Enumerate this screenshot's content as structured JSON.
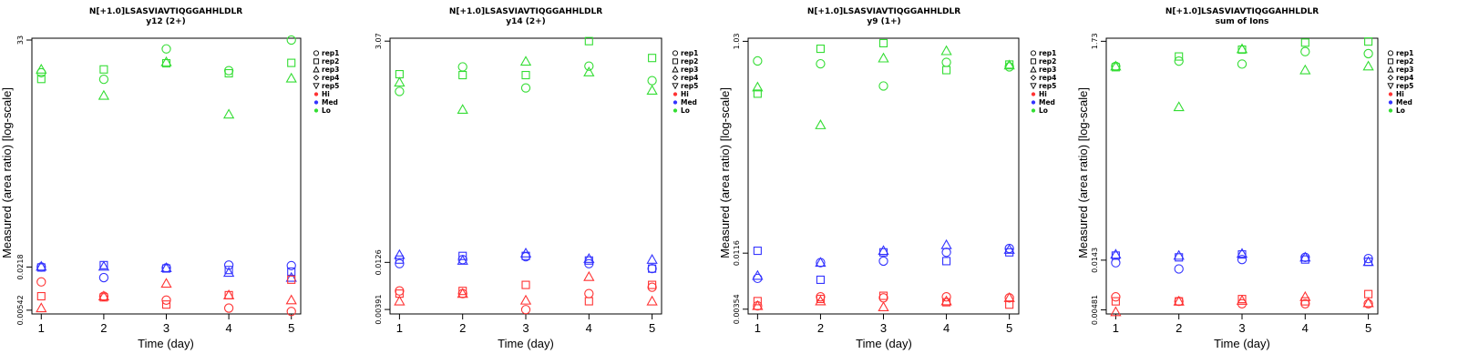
{
  "colors": {
    "Hi": "#ff3333",
    "Med": "#3333ff",
    "Lo": "#33dd33",
    "axis": "#000000"
  },
  "legend": [
    {
      "label": "rep1",
      "marker": "circle"
    },
    {
      "label": "rep2",
      "marker": "square"
    },
    {
      "label": "rep3",
      "marker": "triangle-up"
    },
    {
      "label": "rep4",
      "marker": "diamond"
    },
    {
      "label": "rep5",
      "marker": "triangle-down"
    },
    {
      "label": "Hi",
      "marker": "dot",
      "color": "#ff3333"
    },
    {
      "label": "Med",
      "marker": "dot",
      "color": "#3333ff"
    },
    {
      "label": "Lo",
      "marker": "dot",
      "color": "#33dd33"
    }
  ],
  "chart_data": [
    {
      "type": "scatter",
      "title": "N[+1.0]LSASVIAVTIQGGAHHLDLR",
      "subtitle": "y12 (2+)",
      "xlabel": "Time (day)",
      "ylabel": "Measured (area ratio) [log-scale]",
      "y_scale": "log",
      "xlim": [
        0.85,
        5.15
      ],
      "ylim": [
        0.0048,
        35
      ],
      "x_ticks": [
        1,
        2,
        3,
        4,
        5
      ],
      "y_ticks": [
        0.00542,
        0.0218,
        33
      ],
      "y_tick_labels": [
        "0.00542",
        "0.0218",
        "33"
      ],
      "series": [
        {
          "group": "Lo",
          "rep": "rep1",
          "x": [
            1,
            2,
            3,
            4,
            5
          ],
          "y": [
            11.5,
            9.3,
            24.8,
            12.3,
            33
          ]
        },
        {
          "group": "Lo",
          "rep": "rep2",
          "x": [
            1,
            2,
            3,
            4,
            5
          ],
          "y": [
            9.4,
            12.8,
            15.6,
            11.3,
            15.8
          ]
        },
        {
          "group": "Lo",
          "rep": "rep3",
          "x": [
            1,
            2,
            3,
            4,
            5
          ],
          "y": [
            12.8,
            5.5,
            16.2,
            3.0,
            9.6
          ]
        },
        {
          "group": "Med",
          "rep": "rep1",
          "x": [
            1,
            2,
            3,
            4,
            5
          ],
          "y": [
            0.0218,
            0.0155,
            0.0212,
            0.0232,
            0.0228
          ]
        },
        {
          "group": "Med",
          "rep": "rep2",
          "x": [
            1,
            2,
            3,
            4,
            5
          ],
          "y": [
            0.0215,
            0.0232,
            0.0208,
            0.0198,
            0.0188
          ]
        },
        {
          "group": "Med",
          "rep": "rep3",
          "x": [
            1,
            2,
            3,
            4,
            5
          ],
          "y": [
            0.0222,
            0.0222,
            0.0212,
            0.0182,
            0.0155
          ]
        },
        {
          "group": "Hi",
          "rep": "rep1",
          "x": [
            1,
            2,
            3,
            4,
            5
          ],
          "y": [
            0.0135,
            0.0085,
            0.0075,
            0.0058,
            0.0052
          ]
        },
        {
          "group": "Hi",
          "rep": "rep2",
          "x": [
            1,
            2,
            3,
            4,
            5
          ],
          "y": [
            0.0085,
            0.0082,
            0.0065,
            0.0088,
            0.0145
          ]
        },
        {
          "group": "Hi",
          "rep": "rep3",
          "x": [
            1,
            2,
            3,
            4,
            5
          ],
          "y": [
            0.0058,
            0.0085,
            0.0128,
            0.0088,
            0.0075
          ]
        }
      ]
    },
    {
      "type": "scatter",
      "title": "N[+1.0]LSASVIAVTIQGGAHHLDLR",
      "subtitle": "y14 (2+)",
      "xlabel": "Time (day)",
      "ylabel": "",
      "y_scale": "log",
      "xlim": [
        0.85,
        5.15
      ],
      "ylim": [
        0.0035,
        3.3
      ],
      "x_ticks": [
        1,
        2,
        3,
        4,
        5
      ],
      "y_ticks": [
        0.00391,
        0.0126,
        3.07
      ],
      "y_tick_labels": [
        "0.00391",
        "0.0126",
        "3.07"
      ],
      "series": [
        {
          "group": "Lo",
          "rep": "rep1",
          "x": [
            1,
            2,
            3,
            4,
            5
          ],
          "y": [
            0.88,
            1.62,
            0.96,
            1.65,
            1.15
          ]
        },
        {
          "group": "Lo",
          "rep": "rep2",
          "x": [
            1,
            2,
            3,
            4,
            5
          ],
          "y": [
            1.35,
            1.32,
            1.32,
            3.07,
            2.02
          ]
        },
        {
          "group": "Lo",
          "rep": "rep3",
          "x": [
            1,
            2,
            3,
            4,
            5
          ],
          "y": [
            1.1,
            0.56,
            1.85,
            1.42,
            0.9
          ]
        },
        {
          "group": "Med",
          "rep": "rep1",
          "x": [
            1,
            2,
            3,
            4,
            5
          ],
          "y": [
            0.0122,
            0.0135,
            0.0145,
            0.0122,
            0.0108
          ]
        },
        {
          "group": "Med",
          "rep": "rep2",
          "x": [
            1,
            2,
            3,
            4,
            5
          ],
          "y": [
            0.0135,
            0.0148,
            0.0148,
            0.0132,
            0.0108
          ]
        },
        {
          "group": "Med",
          "rep": "rep3",
          "x": [
            1,
            2,
            3,
            4,
            5
          ],
          "y": [
            0.0152,
            0.0132,
            0.0158,
            0.0138,
            0.0135
          ]
        },
        {
          "group": "Hi",
          "rep": "rep1",
          "x": [
            1,
            2,
            3,
            4,
            5
          ],
          "y": [
            0.0062,
            0.0058,
            0.0039,
            0.0058,
            0.0068
          ]
        },
        {
          "group": "Hi",
          "rep": "rep2",
          "x": [
            1,
            2,
            3,
            4,
            5
          ],
          "y": [
            0.0058,
            0.0062,
            0.0072,
            0.0048,
            0.0072
          ]
        },
        {
          "group": "Hi",
          "rep": "rep3",
          "x": [
            1,
            2,
            3,
            4,
            5
          ],
          "y": [
            0.0048,
            0.0058,
            0.0049,
            0.0088,
            0.0048
          ]
        }
      ]
    },
    {
      "type": "scatter",
      "title": "N[+1.0]LSASVIAVTIQGGAHHLDLR",
      "subtitle": "y9 (1+)",
      "xlabel": "Time (day)",
      "ylabel": "Measured (area ratio) [log-scale]",
      "y_scale": "log",
      "xlim": [
        0.85,
        5.15
      ],
      "ylim": [
        0.0032,
        1.1
      ],
      "x_ticks": [
        1,
        2,
        3,
        4,
        5
      ],
      "y_ticks": [
        0.00354,
        0.0116,
        1.03
      ],
      "y_tick_labels": [
        "0.00354",
        "0.0116",
        "1.03"
      ],
      "series": [
        {
          "group": "Lo",
          "rep": "rep1",
          "x": [
            1,
            2,
            3,
            4,
            5
          ],
          "y": [
            0.68,
            0.64,
            0.4,
            0.66,
            0.6
          ]
        },
        {
          "group": "Lo",
          "rep": "rep2",
          "x": [
            1,
            2,
            3,
            4,
            5
          ],
          "y": [
            0.34,
            0.88,
            0.99,
            0.56,
            0.63
          ]
        },
        {
          "group": "Lo",
          "rep": "rep3",
          "x": [
            1,
            2,
            3,
            4,
            5
          ],
          "y": [
            0.39,
            0.175,
            0.72,
            0.84,
            0.62
          ]
        },
        {
          "group": "Med",
          "rep": "rep1",
          "x": [
            1,
            2,
            3,
            4,
            5
          ],
          "y": [
            0.0068,
            0.0095,
            0.0098,
            0.0118,
            0.0128
          ]
        },
        {
          "group": "Med",
          "rep": "rep2",
          "x": [
            1,
            2,
            3,
            4,
            5
          ],
          "y": [
            0.0122,
            0.0066,
            0.0118,
            0.0098,
            0.0118
          ]
        },
        {
          "group": "Med",
          "rep": "rep3",
          "x": [
            1,
            2,
            3,
            4,
            5
          ],
          "y": [
            0.0072,
            0.0095,
            0.0122,
            0.0138,
            0.0125
          ]
        },
        {
          "group": "Hi",
          "rep": "rep1",
          "x": [
            1,
            2,
            3,
            4,
            5
          ],
          "y": [
            0.0038,
            0.0046,
            0.0045,
            0.0046,
            0.0045
          ]
        },
        {
          "group": "Hi",
          "rep": "rep2",
          "x": [
            1,
            2,
            3,
            4,
            5
          ],
          "y": [
            0.0042,
            0.0044,
            0.0047,
            0.0041,
            0.0039
          ]
        },
        {
          "group": "Hi",
          "rep": "rep3",
          "x": [
            1,
            2,
            3,
            4,
            5
          ],
          "y": [
            0.0038,
            0.0042,
            0.0037,
            0.0042,
            0.0045
          ]
        }
      ]
    },
    {
      "type": "scatter",
      "title": "N[+1.0]LSASVIAVTIQGGAHHLDLR",
      "subtitle": "sum of Ions",
      "xlabel": "Time (day)",
      "ylabel": "Measured (area ratio) [log-scale]",
      "y_scale": "log",
      "xlim": [
        0.85,
        5.15
      ],
      "ylim": [
        0.0044,
        1.85
      ],
      "x_ticks": [
        1,
        2,
        3,
        4,
        5
      ],
      "y_ticks": [
        0.00481,
        0.0143,
        1.73
      ],
      "y_tick_labels": [
        "0.00481",
        "0.0143",
        "1.73"
      ],
      "series": [
        {
          "group": "Lo",
          "rep": "rep1",
          "x": [
            1,
            2,
            3,
            4,
            5
          ],
          "y": [
            1.0,
            1.12,
            1.05,
            1.38,
            1.32
          ]
        },
        {
          "group": "Lo",
          "rep": "rep2",
          "x": [
            1,
            2,
            3,
            4,
            5
          ],
          "y": [
            0.98,
            1.24,
            1.44,
            1.68,
            1.72
          ]
        },
        {
          "group": "Lo",
          "rep": "rep3",
          "x": [
            1,
            2,
            3,
            4,
            5
          ],
          "y": [
            1.0,
            0.41,
            1.46,
            0.92,
            1.0
          ]
        },
        {
          "group": "Med",
          "rep": "rep1",
          "x": [
            1,
            2,
            3,
            4,
            5
          ],
          "y": [
            0.0135,
            0.0118,
            0.0145,
            0.0152,
            0.0148
          ]
        },
        {
          "group": "Med",
          "rep": "rep2",
          "x": [
            1,
            2,
            3,
            4,
            5
          ],
          "y": [
            0.0158,
            0.0152,
            0.0162,
            0.0145,
            0.0138
          ]
        },
        {
          "group": "Med",
          "rep": "rep3",
          "x": [
            1,
            2,
            3,
            4,
            5
          ],
          "y": [
            0.0162,
            0.0158,
            0.0165,
            0.0152,
            0.0138
          ]
        },
        {
          "group": "Hi",
          "rep": "rep1",
          "x": [
            1,
            2,
            3,
            4,
            5
          ],
          "y": [
            0.0064,
            0.0058,
            0.0055,
            0.0055,
            0.0055
          ]
        },
        {
          "group": "Hi",
          "rep": "rep2",
          "x": [
            1,
            2,
            3,
            4,
            5
          ],
          "y": [
            0.0058,
            0.0058,
            0.0061,
            0.0058,
            0.0068
          ]
        },
        {
          "group": "Hi",
          "rep": "rep3",
          "x": [
            1,
            2,
            3,
            4,
            5
          ],
          "y": [
            0.0046,
            0.0058,
            0.0059,
            0.0064,
            0.0056
          ]
        }
      ]
    }
  ]
}
